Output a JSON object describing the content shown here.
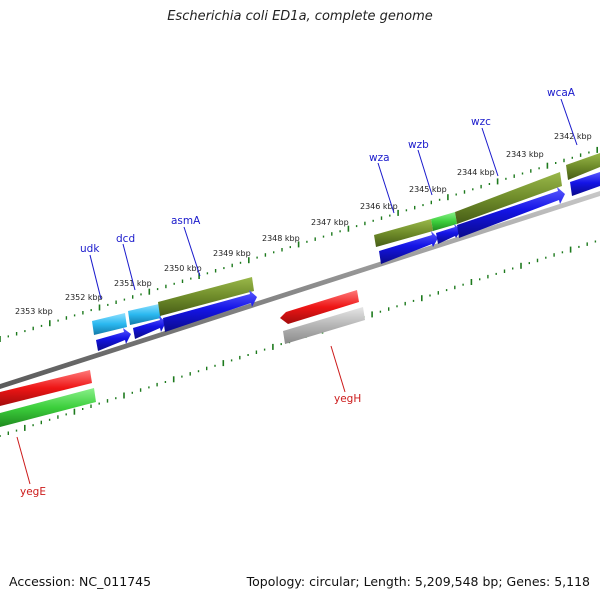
{
  "title": "Escherichia coli ED1a, complete genome",
  "footer": {
    "accession": "Accession: NC_011745",
    "summary": "Topology: circular; Length: 5,209,548 bp; Genes: 5,118"
  },
  "colors": {
    "backbone": "#8a8a8a",
    "tick": "#1d7a1d",
    "gene_label_forward": "#1a1acc",
    "gene_label_reverse": "#cc1a1a",
    "blue_arrow": "#1414e6",
    "cyan_feature": "#2ab8f0",
    "olive_feature": "#6f8c2a",
    "bright_green_feature": "#3ccf3c",
    "red_feature": "#ee1515",
    "grey_feature": "#b5b5b5"
  },
  "scale_labels": [
    "2353 kbp",
    "2352 kbp",
    "2351 kbp",
    "2350 kbp",
    "2349 kbp",
    "2348 kbp",
    "2347 kbp",
    "2346 kbp",
    "2345 kbp",
    "2344 kbp",
    "2343 kbp",
    "2342 kbp"
  ],
  "gene_labels": {
    "udk": "udk",
    "dcd": "dcd",
    "asmA": "asmA",
    "wza": "wza",
    "wzb": "wzb",
    "wzc": "wzc",
    "wcaA": "wcaA",
    "yegH": "yegH",
    "yegE": "yegE"
  }
}
